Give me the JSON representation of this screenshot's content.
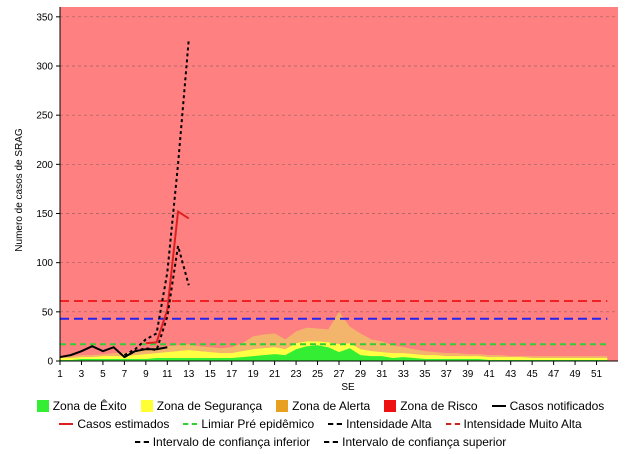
{
  "chart_data": {
    "type": "area",
    "xlabel": "SE",
    "ylabel": "Numero de casos de SRAG",
    "xlim": [
      1,
      53
    ],
    "ylim": [
      0,
      360
    ],
    "y_ticks": [
      0,
      50,
      100,
      150,
      200,
      250,
      300,
      350
    ],
    "x_ticks": [
      1,
      3,
      5,
      7,
      9,
      11,
      13,
      15,
      17,
      19,
      21,
      23,
      25,
      27,
      29,
      31,
      33,
      35,
      37,
      39,
      41,
      43,
      45,
      47,
      49,
      51
    ],
    "grid": "horizontal dashed",
    "legend_position": "bottom",
    "colors": {
      "exito": "#33ee33",
      "seguranca": "#ffff44",
      "alerta": "#f3b56b",
      "risco": "#ff8080",
      "notificados": "#000000",
      "estimados": "#e02020",
      "limiar": "#33cc33",
      "alta": "#2222ee",
      "muito_alta": "#ee2222"
    },
    "zones": {
      "x": [
        1,
        2,
        3,
        4,
        5,
        6,
        7,
        8,
        9,
        10,
        11,
        12,
        13,
        14,
        15,
        16,
        17,
        18,
        19,
        20,
        21,
        22,
        23,
        24,
        25,
        26,
        27,
        28,
        29,
        30,
        31,
        32,
        33,
        34,
        35,
        36,
        37,
        38,
        39,
        40,
        41,
        42,
        43,
        44,
        45,
        46,
        47,
        48,
        49,
        50,
        51,
        52
      ],
      "exito": [
        1,
        1,
        2,
        2,
        2,
        2,
        2,
        2,
        2,
        3,
        3,
        3,
        3,
        3,
        3,
        3,
        3,
        4,
        5,
        6,
        7,
        6,
        12,
        15,
        16,
        14,
        9,
        13,
        6,
        5,
        5,
        3,
        4,
        3,
        2,
        2,
        2,
        2,
        2,
        2,
        1,
        1,
        1,
        1,
        1,
        1,
        1,
        1,
        1,
        1,
        1,
        1
      ],
      "seguranca": [
        3,
        3,
        4,
        4,
        5,
        5,
        5,
        6,
        7,
        8,
        9,
        10,
        11,
        10,
        9,
        8,
        8,
        10,
        12,
        13,
        14,
        12,
        18,
        20,
        20,
        19,
        17,
        18,
        12,
        10,
        9,
        8,
        8,
        7,
        6,
        6,
        5,
        5,
        5,
        5,
        4,
        4,
        4,
        4,
        3,
        3,
        3,
        3,
        3,
        3,
        3,
        3
      ],
      "alerta": [
        5,
        5,
        6,
        6,
        7,
        8,
        8,
        10,
        12,
        14,
        15,
        16,
        17,
        15,
        14,
        13,
        14,
        18,
        25,
        27,
        28,
        22,
        30,
        34,
        33,
        32,
        50,
        35,
        28,
        22,
        20,
        16,
        14,
        12,
        10,
        9,
        8,
        8,
        7,
        7,
        6,
        6,
        5,
        5,
        5,
        5,
        5,
        5,
        5,
        5,
        5,
        5
      ]
    },
    "series": [
      {
        "name": "Casos notificados",
        "x": [
          1,
          2,
          3,
          4,
          5,
          6,
          7,
          8,
          9,
          10,
          11
        ],
        "values": [
          4,
          6,
          10,
          15,
          10,
          14,
          4,
          10,
          12,
          12,
          14
        ]
      },
      {
        "name": "Casos estimados",
        "x": [
          9,
          10,
          11,
          12,
          13
        ],
        "values": [
          18,
          19,
          52,
          152,
          145
        ]
      },
      {
        "name": "Intervalo de confiança inferior",
        "x": [
          7,
          8,
          9,
          10,
          11,
          12,
          13
        ],
        "values": [
          4,
          10,
          13,
          11,
          45,
          117,
          77
        ]
      },
      {
        "name": "Intervalo de confiança superior",
        "x": [
          7,
          8,
          9,
          10,
          11,
          12,
          13
        ],
        "values": [
          6,
          12,
          22,
          28,
          90,
          200,
          327
        ]
      }
    ],
    "thresholds": {
      "limiar_pre_epidemico": 17,
      "intensidade_alta": 43,
      "intensidade_muito_alta": 61
    }
  },
  "legend": {
    "row1": [
      {
        "label": "Zona de Êxito",
        "kind": "box",
        "color": "#33ee33"
      },
      {
        "label": "Zona de Segurança",
        "kind": "box",
        "color": "#ffff33"
      },
      {
        "label": "Zona de Alerta",
        "kind": "box",
        "color": "#e8a020"
      },
      {
        "label": "Zona de Risco",
        "kind": "box",
        "color": "#ee1111"
      },
      {
        "label": "Casos notificados",
        "kind": "solid",
        "color": "#000000"
      }
    ],
    "row2": [
      {
        "label": "Casos estimados",
        "kind": "solid",
        "color": "#e02020"
      },
      {
        "label": "Limiar Pré epidêmico",
        "kind": "dashed",
        "color": "#33cc33"
      },
      {
        "label": "Intensidade Alta",
        "kind": "dashed",
        "color": "#000000"
      },
      {
        "label": "Intensidade Muito Alta",
        "kind": "dashed",
        "color": "#cc2222"
      }
    ],
    "row3": [
      {
        "label": "Intervalo de confiança inferior",
        "kind": "dashed",
        "color": "#000000"
      },
      {
        "label": "Intervalo de confiança superior",
        "kind": "dashed",
        "color": "#000000"
      }
    ]
  }
}
